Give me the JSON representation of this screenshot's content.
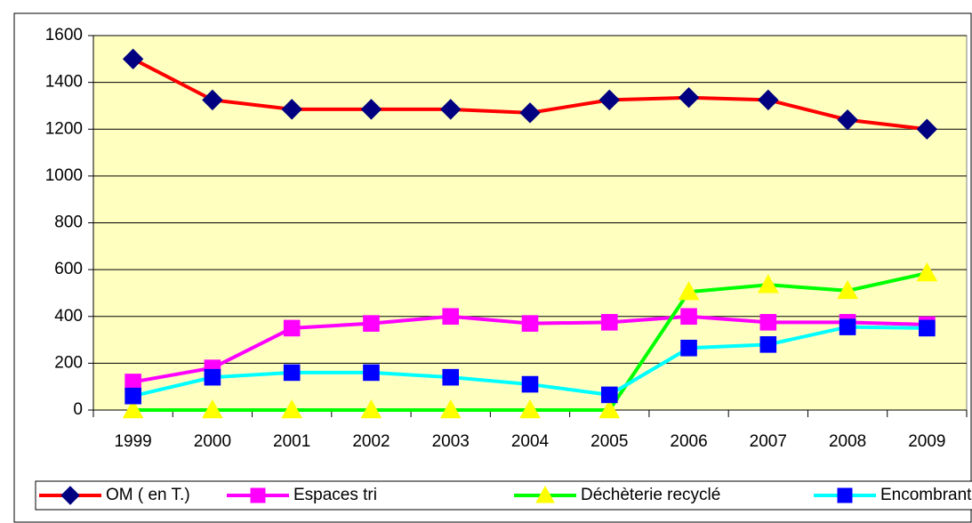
{
  "chart_data": {
    "type": "line",
    "categories": [
      "1999",
      "2000",
      "2001",
      "2002",
      "2003",
      "2004",
      "2005",
      "2006",
      "2007",
      "2008",
      "2009"
    ],
    "series": [
      {
        "name": "OM ( en T.)",
        "color": "#ff0000",
        "marker_color": "#000080",
        "marker": "diamond",
        "values": [
          1500,
          1325,
          1285,
          1285,
          1285,
          1270,
          1325,
          1335,
          1325,
          1240,
          1200
        ]
      },
      {
        "name": "Espaces tri",
        "color": "#ff00ff",
        "marker_color": "#ff00ff",
        "marker": "square",
        "values": [
          120,
          180,
          350,
          370,
          400,
          370,
          375,
          400,
          375,
          375,
          365
        ]
      },
      {
        "name": "Déchèterie recyclé",
        "color": "#00ff00",
        "marker_color": "#ffff00",
        "marker": "triangle",
        "values": [
          0,
          0,
          0,
          0,
          0,
          0,
          0,
          505,
          535,
          510,
          585
        ]
      },
      {
        "name": "Encombrants déchèterie",
        "color": "#00ffff",
        "marker_color": "#0000ff",
        "marker": "square",
        "values": [
          60,
          140,
          160,
          160,
          140,
          110,
          65,
          265,
          280,
          355,
          350
        ]
      }
    ],
    "ylim": [
      0,
      1600
    ],
    "yticks": [
      0,
      200,
      400,
      600,
      800,
      1000,
      1200,
      1400,
      1600
    ],
    "grid": true,
    "legend": "bottom",
    "plot_background": "#ffffc0"
  }
}
